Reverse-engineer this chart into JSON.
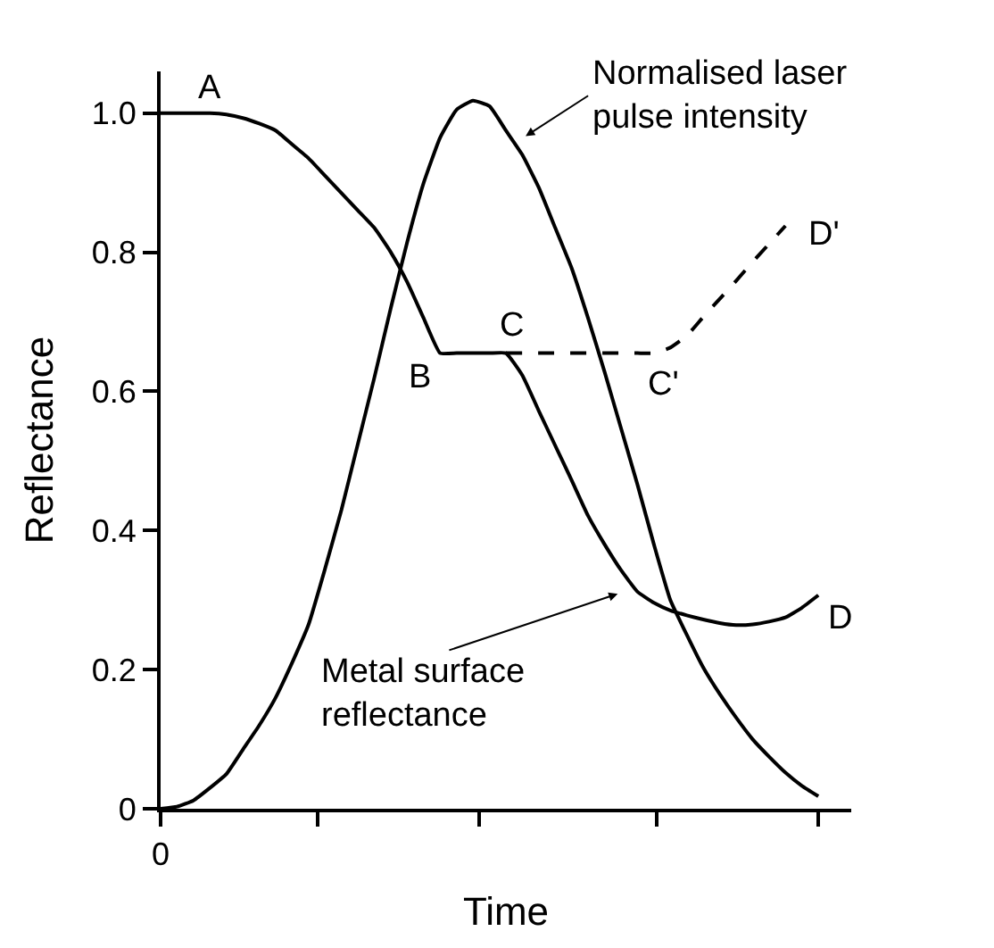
{
  "chart_data": {
    "type": "line",
    "xlabel": "Time",
    "ylabel": "Reflectance",
    "categories": [
      "0",
      null,
      null,
      null,
      null,
      null,
      null,
      null,
      null,
      null,
      null,
      null,
      null,
      null,
      null,
      null,
      null,
      null,
      null,
      null,
      null,
      null,
      null,
      null,
      null,
      null,
      null,
      null,
      null,
      null,
      null,
      null,
      null,
      null,
      null,
      null,
      null,
      null,
      null,
      null,
      null,
      null
    ],
    "ylim": [
      0,
      1.06
    ],
    "yticks": [
      {
        "value": 0,
        "label": "0"
      },
      {
        "value": 0.2,
        "label": "0.2"
      },
      {
        "value": 0.4,
        "label": "0.4"
      },
      {
        "value": 0.6,
        "label": "0.6"
      },
      {
        "value": 0.8,
        "label": "0.8"
      },
      {
        "value": 1.0,
        "label": "1.0"
      }
    ],
    "legend": false,
    "marker": "none",
    "series": [
      {
        "color": "#000000",
        "line_style": "solid",
        "values": [
          1.0,
          1.0,
          1.0,
          1.0,
          0.998,
          0.993,
          0.985,
          0.975,
          0.955,
          0.935,
          0.91,
          0.885,
          0.86,
          0.835,
          0.8,
          0.757,
          0.705,
          0.655,
          0.655,
          0.655,
          0.655,
          0.655,
          0.623,
          0.572,
          0.522,
          0.472,
          0.421,
          0.38,
          0.343,
          0.312,
          0.296,
          0.285,
          0.278,
          0.272,
          0.267,
          0.264,
          0.265,
          0.269,
          0.275,
          0.289,
          0.307,
          null
        ]
      },
      {
        "color": "#000000",
        "line_style": "dashed",
        "values": [
          null,
          null,
          null,
          null,
          null,
          null,
          null,
          null,
          null,
          null,
          null,
          null,
          null,
          null,
          null,
          null,
          null,
          null,
          null,
          null,
          null,
          0.655,
          0.655,
          0.655,
          0.655,
          0.655,
          0.655,
          0.655,
          0.655,
          0.655,
          0.655,
          0.663,
          0.68,
          0.707,
          0.733,
          0.759,
          0.786,
          0.812,
          0.838,
          null,
          null,
          null
        ]
      },
      {
        "color": "#000000",
        "line_style": "solid",
        "values": [
          0,
          0.003,
          0.012,
          0.03,
          0.05,
          0.085,
          0.12,
          0.16,
          0.21,
          0.265,
          0.345,
          0.43,
          0.525,
          0.62,
          0.72,
          0.815,
          0.9,
          0.965,
          1.005,
          1.018,
          1.01,
          0.975,
          0.94,
          0.893,
          0.835,
          0.777,
          0.705,
          0.628,
          0.547,
          0.466,
          0.38,
          0.3,
          0.25,
          0.203,
          0.165,
          0.131,
          0.1,
          0.075,
          0.052,
          0.033,
          0.018,
          null
        ]
      }
    ],
    "annotations": [
      "Normalised laser\npulse intensity",
      "Metal surface\nreflectance",
      "A",
      "B",
      "C",
      "C'",
      "D",
      "D'"
    ]
  }
}
